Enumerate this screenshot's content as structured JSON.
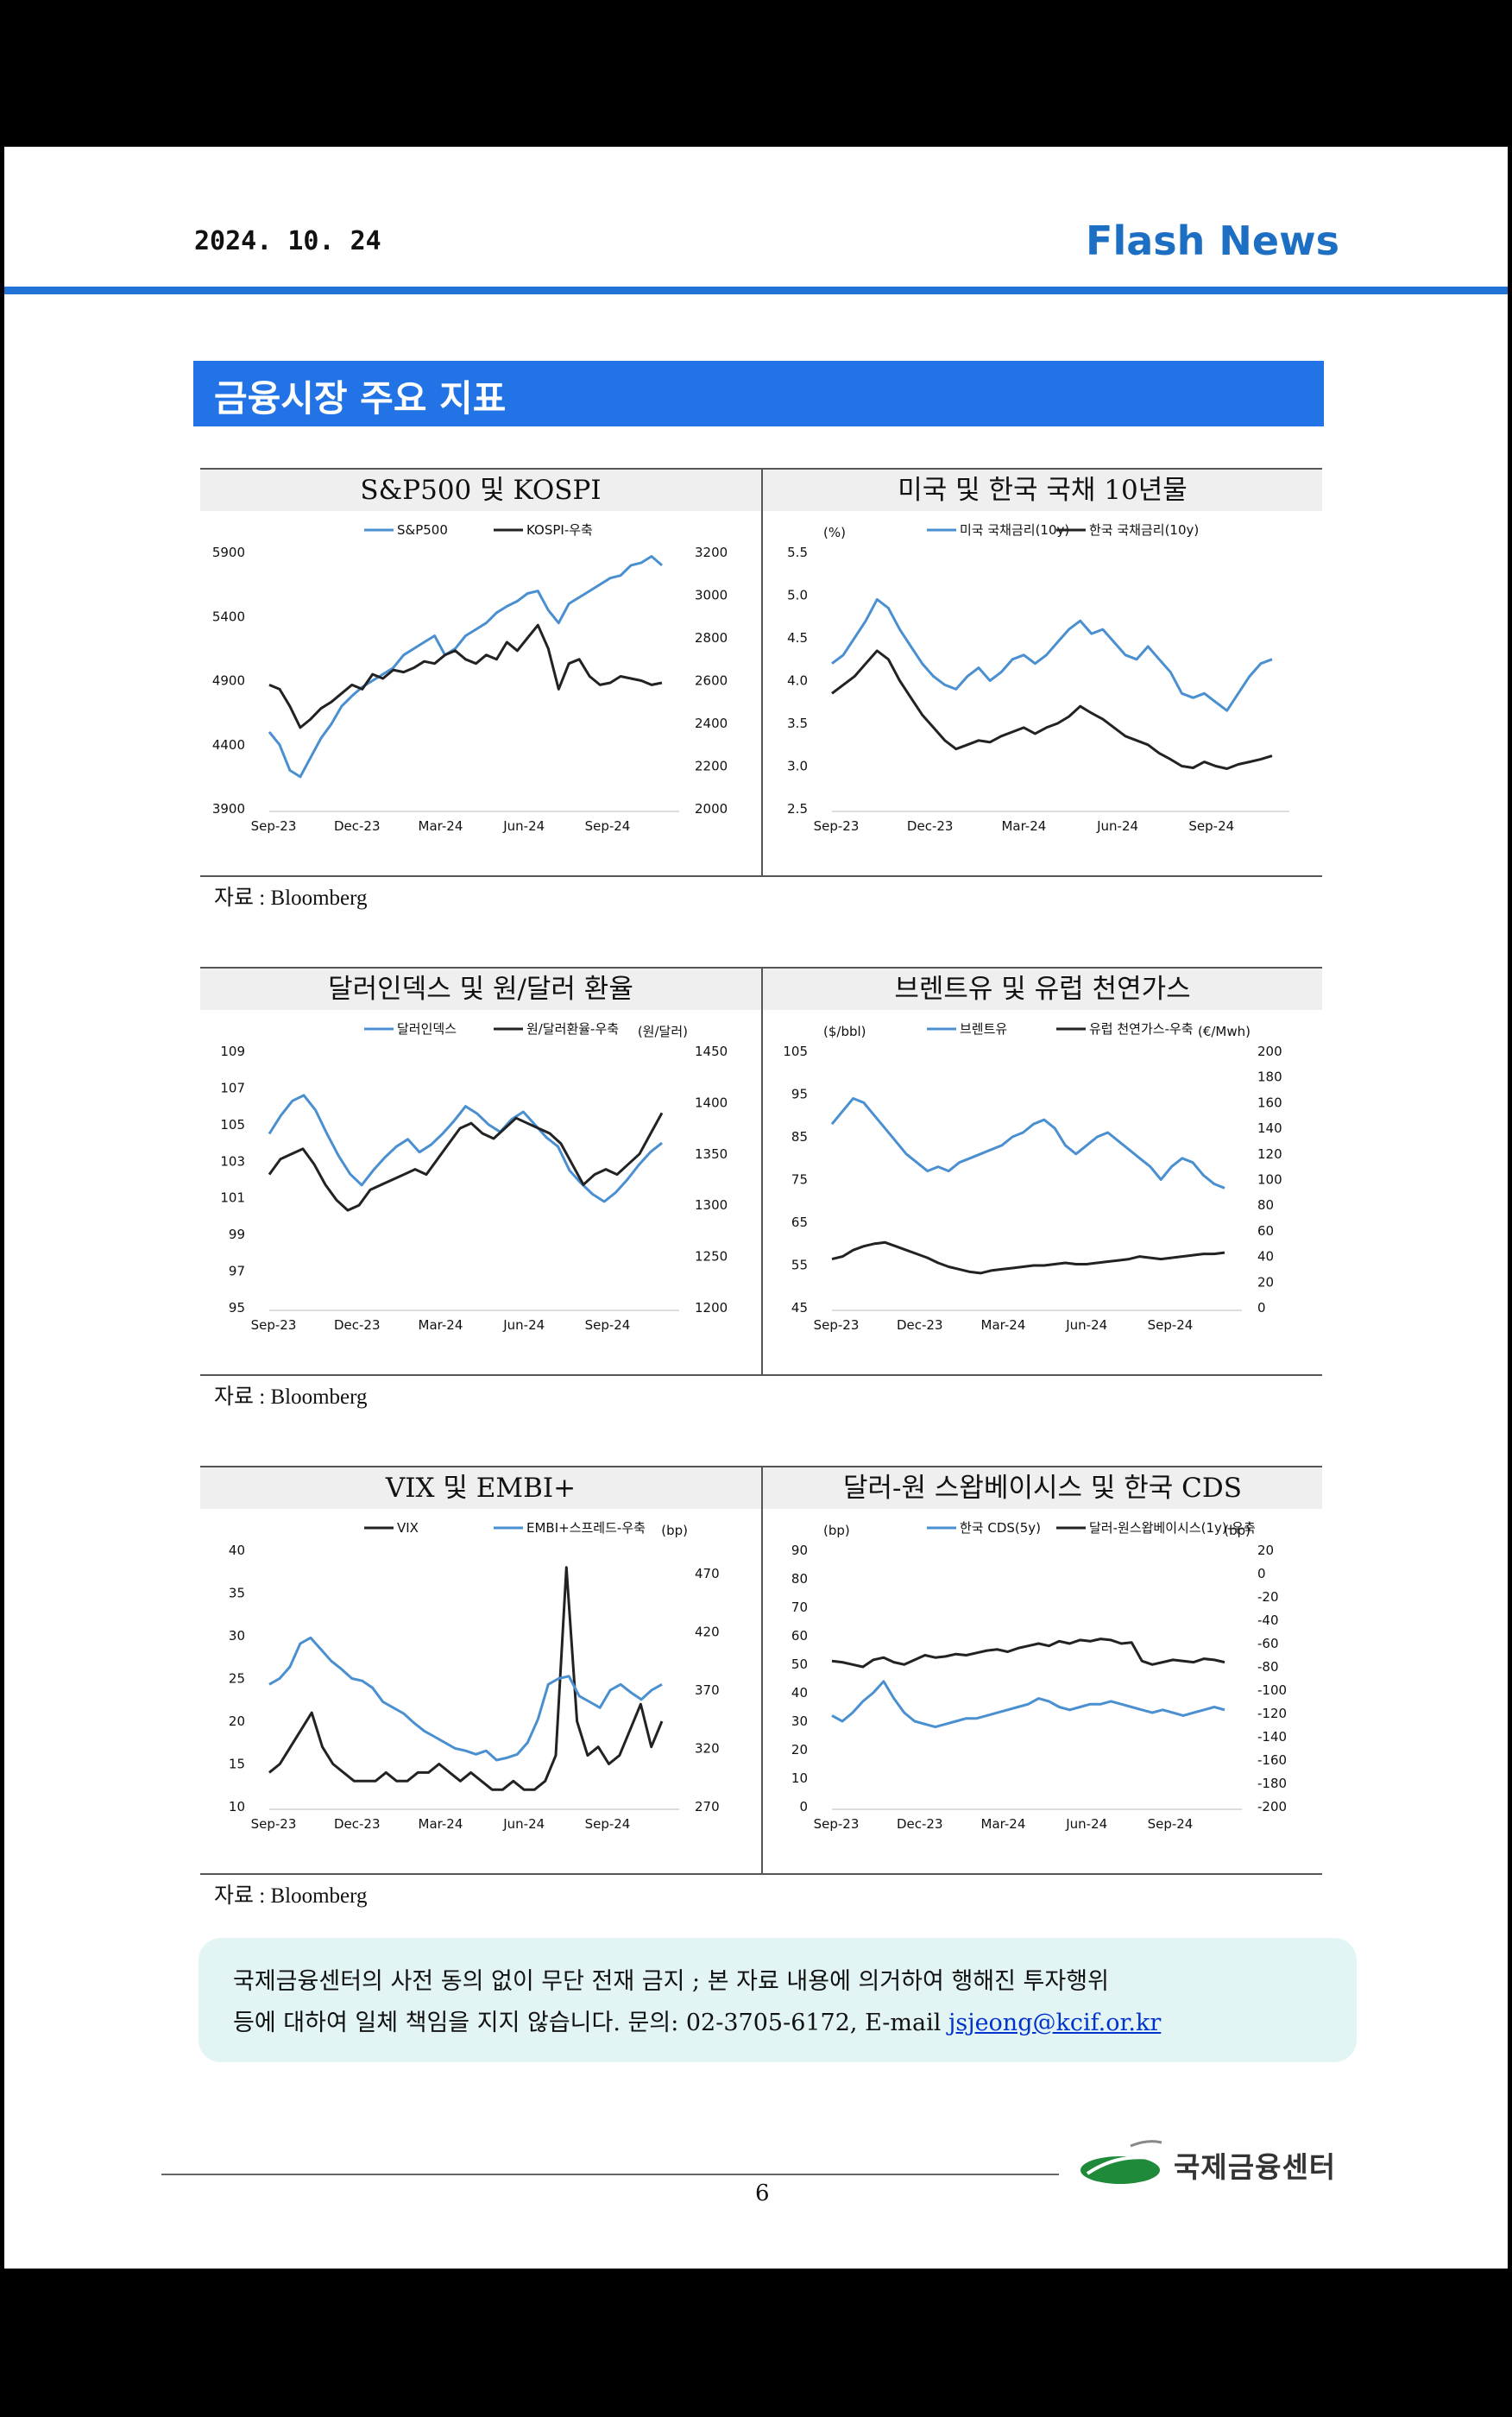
{
  "header": {
    "date": "2024. 10. 24",
    "brand": "Flash News"
  },
  "section": {
    "title": "금융시장 주요 지표"
  },
  "source_label": "자료 : Bloomberg",
  "colors": {
    "blue_series": "#4a8fd0",
    "black_series": "#222222",
    "accent": "#2273e6"
  },
  "x_ticks": [
    "Sep-23",
    "Dec-23",
    "Mar-24",
    "Jun-24",
    "Sep-24"
  ],
  "charts": [
    {
      "title": "S&P500 및 KOSPI",
      "left_axis": {
        "unit": "",
        "ticks": [
          "5900",
          "5400",
          "4900",
          "4400",
          "3900"
        ],
        "min": 3900,
        "max": 5900
      },
      "right_axis": {
        "unit": "",
        "ticks": [
          "3200",
          "3000",
          "2800",
          "2600",
          "2400",
          "2200",
          "2000"
        ],
        "min": 2000,
        "max": 3200
      },
      "series": [
        {
          "name": "S&P500",
          "axis": "left",
          "color": "blue",
          "values": [
            4500,
            4400,
            4200,
            4150,
            4300,
            4450,
            4560,
            4700,
            4780,
            4850,
            4900,
            4950,
            5000,
            5100,
            5150,
            5200,
            5250,
            5100,
            5150,
            5250,
            5300,
            5350,
            5430,
            5480,
            5520,
            5580,
            5600,
            5450,
            5350,
            5500,
            5550,
            5600,
            5650,
            5700,
            5720,
            5800,
            5820,
            5870,
            5800
          ]
        },
        {
          "name": "KOSPI-우축",
          "axis": "right",
          "color": "black",
          "values": [
            2580,
            2560,
            2480,
            2380,
            2420,
            2470,
            2500,
            2540,
            2580,
            2560,
            2630,
            2610,
            2650,
            2640,
            2660,
            2690,
            2680,
            2720,
            2740,
            2700,
            2680,
            2720,
            2700,
            2780,
            2740,
            2800,
            2860,
            2750,
            2560,
            2680,
            2700,
            2620,
            2580,
            2590,
            2620,
            2610,
            2600,
            2580,
            2590
          ]
        }
      ]
    },
    {
      "title": "미국 및 한국 국채 10년물",
      "left_axis": {
        "unit": "(%)",
        "ticks": [
          "5.5",
          "5.0",
          "4.5",
          "4.0",
          "3.5",
          "3.0",
          "2.5"
        ],
        "min": 2.5,
        "max": 5.5
      },
      "series": [
        {
          "name": "미국 국채금리(10y)",
          "axis": "left",
          "color": "blue",
          "values": [
            4.2,
            4.3,
            4.5,
            4.7,
            4.95,
            4.85,
            4.6,
            4.4,
            4.2,
            4.05,
            3.95,
            3.9,
            4.05,
            4.15,
            4.0,
            4.1,
            4.25,
            4.3,
            4.2,
            4.3,
            4.45,
            4.6,
            4.7,
            4.55,
            4.6,
            4.45,
            4.3,
            4.25,
            4.4,
            4.25,
            4.1,
            3.85,
            3.8,
            3.85,
            3.75,
            3.65,
            3.85,
            4.05,
            4.2,
            4.25
          ]
        },
        {
          "name": "한국 국채금리(10y)",
          "axis": "left",
          "color": "black",
          "values": [
            3.85,
            3.95,
            4.05,
            4.2,
            4.35,
            4.25,
            4.0,
            3.8,
            3.6,
            3.45,
            3.3,
            3.2,
            3.25,
            3.3,
            3.28,
            3.35,
            3.4,
            3.45,
            3.38,
            3.45,
            3.5,
            3.58,
            3.7,
            3.62,
            3.55,
            3.45,
            3.35,
            3.3,
            3.25,
            3.15,
            3.08,
            3.0,
            2.98,
            3.05,
            3.0,
            2.97,
            3.02,
            3.05,
            3.08,
            3.12
          ]
        }
      ]
    },
    {
      "title": "달러인덱스 및 원/달러 환율",
      "left_axis": {
        "unit": "",
        "ticks": [
          "109",
          "107",
          "105",
          "103",
          "101",
          "99",
          "97",
          "95"
        ],
        "min": 95,
        "max": 109
      },
      "right_axis": {
        "unit": "(원/달러)",
        "ticks": [
          "1450",
          "1400",
          "1350",
          "1300",
          "1250",
          "1200"
        ],
        "min": 1200,
        "max": 1450
      },
      "series": [
        {
          "name": "달러인덱스",
          "axis": "left",
          "color": "blue",
          "values": [
            104.5,
            105.5,
            106.3,
            106.6,
            105.8,
            104.5,
            103.3,
            102.3,
            101.7,
            102.5,
            103.2,
            103.8,
            104.2,
            103.5,
            103.9,
            104.5,
            105.2,
            106.0,
            105.6,
            105.0,
            104.6,
            105.3,
            105.7,
            105.0,
            104.3,
            103.8,
            102.5,
            101.8,
            101.2,
            100.8,
            101.3,
            102.0,
            102.8,
            103.5,
            104.0
          ]
        },
        {
          "name": "원/달러환율-우축",
          "axis": "right",
          "color": "black",
          "values": [
            1330,
            1345,
            1350,
            1355,
            1340,
            1320,
            1305,
            1295,
            1300,
            1315,
            1320,
            1325,
            1330,
            1335,
            1330,
            1345,
            1360,
            1375,
            1380,
            1370,
            1365,
            1375,
            1385,
            1380,
            1375,
            1370,
            1360,
            1340,
            1320,
            1330,
            1335,
            1330,
            1340,
            1350,
            1370,
            1390
          ]
        }
      ]
    },
    {
      "title": "브렌트유 및 유럽 천연가스",
      "left_axis": {
        "unit": "($/bbl)",
        "ticks": [
          "105",
          "95",
          "85",
          "75",
          "65",
          "55",
          "45"
        ],
        "min": 45,
        "max": 105
      },
      "right_axis": {
        "unit": "(€/Mwh)",
        "ticks": [
          "200",
          "180",
          "160",
          "140",
          "120",
          "100",
          "80",
          "60",
          "40",
          "20",
          "0"
        ],
        "min": 0,
        "max": 200
      },
      "series": [
        {
          "name": "브렌트유",
          "axis": "left",
          "color": "blue",
          "values": [
            88,
            91,
            94,
            93,
            90,
            87,
            84,
            81,
            79,
            77,
            78,
            77,
            79,
            80,
            81,
            82,
            83,
            85,
            86,
            88,
            89,
            87,
            83,
            81,
            83,
            85,
            86,
            84,
            82,
            80,
            78,
            75,
            78,
            80,
            79,
            76,
            74,
            73
          ]
        },
        {
          "name": "유럽 천연가스-우축",
          "axis": "right",
          "color": "black",
          "values": [
            38,
            40,
            45,
            48,
            50,
            51,
            48,
            45,
            42,
            39,
            35,
            32,
            30,
            28,
            27,
            29,
            30,
            31,
            32,
            33,
            33,
            34,
            35,
            34,
            34,
            35,
            36,
            37,
            38,
            40,
            39,
            38,
            39,
            40,
            41,
            42,
            42,
            43
          ]
        }
      ]
    },
    {
      "title": "VIX 및 EMBI+",
      "left_axis": {
        "unit": "",
        "ticks": [
          "40",
          "35",
          "30",
          "25",
          "20",
          "15",
          "10"
        ],
        "min": 10,
        "max": 40
      },
      "right_axis": {
        "unit": "(bp)",
        "ticks": [
          "470",
          "420",
          "370",
          "320",
          "270"
        ],
        "min": 270,
        "max": 490
      },
      "series": [
        {
          "name": "VIX",
          "axis": "left",
          "color": "black",
          "values": [
            14,
            15,
            17,
            19,
            21,
            17,
            15,
            14,
            13,
            13,
            13,
            14,
            13,
            13,
            14,
            14,
            15,
            14,
            13,
            14,
            13,
            12,
            12,
            13,
            12,
            12,
            13,
            16,
            38,
            20,
            16,
            17,
            15,
            16,
            19,
            22,
            17,
            20
          ]
        },
        {
          "name": "EMBI+스프레드-우축",
          "axis": "right",
          "color": "blue",
          "values": [
            375,
            380,
            390,
            410,
            415,
            405,
            395,
            388,
            380,
            378,
            372,
            360,
            355,
            350,
            342,
            335,
            330,
            325,
            320,
            318,
            315,
            318,
            310,
            312,
            315,
            325,
            345,
            375,
            380,
            382,
            365,
            360,
            355,
            370,
            375,
            368,
            362,
            370,
            375
          ]
        }
      ]
    },
    {
      "title": "달러-원 스왑베이시스 및 한국 CDS",
      "left_axis": {
        "unit": "(bp)",
        "ticks": [
          "90",
          "80",
          "70",
          "60",
          "50",
          "40",
          "30",
          "20",
          "10",
          "0"
        ],
        "min": 0,
        "max": 90
      },
      "right_axis": {
        "unit": "(bp)",
        "ticks": [
          "20",
          "0",
          "-20",
          "-40",
          "-60",
          "-80",
          "-100",
          "-120",
          "-140",
          "-160",
          "-180",
          "-200"
        ],
        "min": -200,
        "max": 20
      },
      "series": [
        {
          "name": "한국 CDS(5y)",
          "axis": "left",
          "color": "blue",
          "values": [
            32,
            30,
            33,
            37,
            40,
            44,
            38,
            33,
            30,
            29,
            28,
            29,
            30,
            31,
            31,
            32,
            33,
            34,
            35,
            36,
            38,
            37,
            35,
            34,
            35,
            36,
            36,
            37,
            36,
            35,
            34,
            33,
            34,
            33,
            32,
            33,
            34,
            35,
            34
          ]
        },
        {
          "name": "달러-원스왑베이시스(1y)-우축",
          "axis": "right",
          "color": "black",
          "values": [
            -75,
            -76,
            -78,
            -80,
            -74,
            -72,
            -76,
            -78,
            -74,
            -70,
            -72,
            -71,
            -69,
            -70,
            -68,
            -66,
            -65,
            -67,
            -64,
            -62,
            -60,
            -62,
            -58,
            -60,
            -57,
            -58,
            -56,
            -57,
            -60,
            -59,
            -75,
            -78,
            -76,
            -74,
            -75,
            -76,
            -73,
            -74,
            -76
          ]
        }
      ]
    }
  ],
  "disclaimer": {
    "line1": "국제금융센터의 사전 동의 없이 무단 전재 금지 ; 본 자료 내용에 의거하여 행해진 투자행위",
    "line2_prefix": "등에 대하여 일체 책임을 지지 않습니다. 문의: 02-3705-6172, E-mail ",
    "email": "jsjeong@kcif.or.kr"
  },
  "footer": {
    "page": "6",
    "org": "국제금융센터"
  }
}
